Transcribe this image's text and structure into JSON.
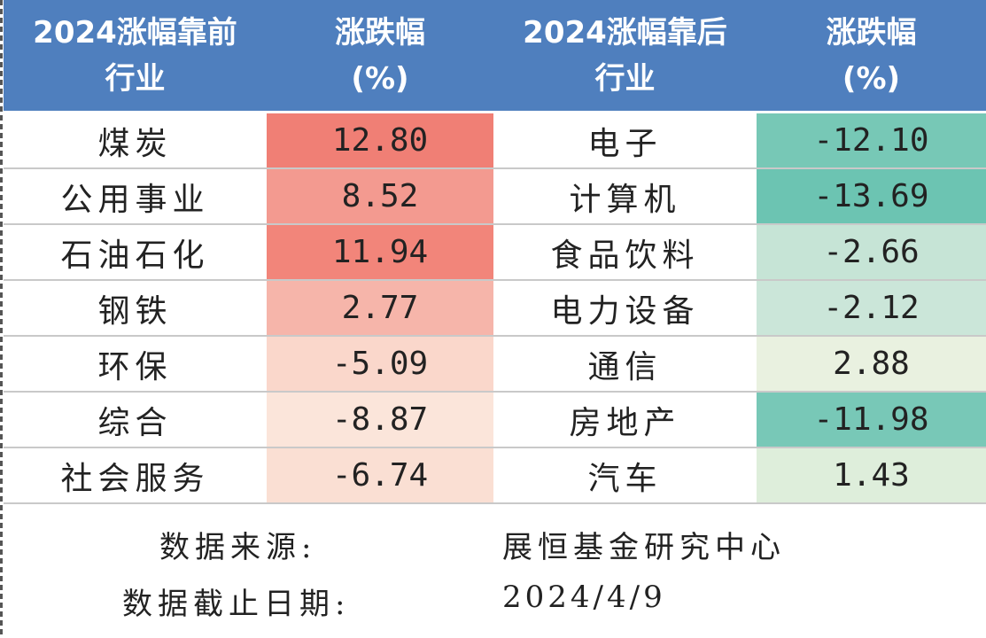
{
  "header": {
    "col1_line1": "2024涨幅靠前",
    "col1_line2": "行业",
    "col2_line1": "涨跌幅",
    "col2_line2": "(%)",
    "col3_line1": "2024涨幅靠后",
    "col3_line2": "行业",
    "col4_line1": "涨跌幅",
    "col4_line2": "(%)"
  },
  "colors": {
    "header_bg": "#4f7fbe",
    "up_high": "#f07e74",
    "down_high": "#6cc4b2"
  },
  "rows": [
    {
      "top_industry": "煤炭",
      "top_change": "12.80",
      "top_color": "#f07f75",
      "bottom_industry": "电子",
      "bottom_change": "-12.10",
      "bottom_color": "#77c8b6"
    },
    {
      "top_industry": "公用事业",
      "top_change": "8.52",
      "top_color": "#f39a90",
      "bottom_industry": "计算机",
      "bottom_change": "-13.69",
      "bottom_color": "#6cc4b2"
    },
    {
      "top_industry": "石油石化",
      "top_change": "11.94",
      "top_color": "#f2857a",
      "bottom_industry": "食品饮料",
      "bottom_change": "-2.66",
      "bottom_color": "#c6e4d6"
    },
    {
      "top_industry": "钢铁",
      "top_change": "2.77",
      "top_color": "#f6b5aa",
      "bottom_industry": "电力设备",
      "bottom_change": "-2.12",
      "bottom_color": "#cbe6d9"
    },
    {
      "top_industry": "环保",
      "top_change": "-5.09",
      "top_color": "#fad7cb",
      "bottom_industry": "通信",
      "bottom_change": "2.88",
      "bottom_color": "#e9f1e0"
    },
    {
      "top_industry": "综合",
      "top_change": "-8.87",
      "top_color": "#fbe5da",
      "bottom_industry": "房地产",
      "bottom_change": "-11.98",
      "bottom_color": "#78c8b7"
    },
    {
      "top_industry": "社会服务",
      "top_change": "-6.74",
      "top_color": "#fadfd3",
      "bottom_industry": "汽车",
      "bottom_change": "1.43",
      "bottom_color": "#deeedb"
    }
  ],
  "footer": {
    "source_label": "数据来源:",
    "source_value": "展恒基金研究中心",
    "date_label": "数据截止日期:",
    "date_value": "2024/4/9"
  }
}
